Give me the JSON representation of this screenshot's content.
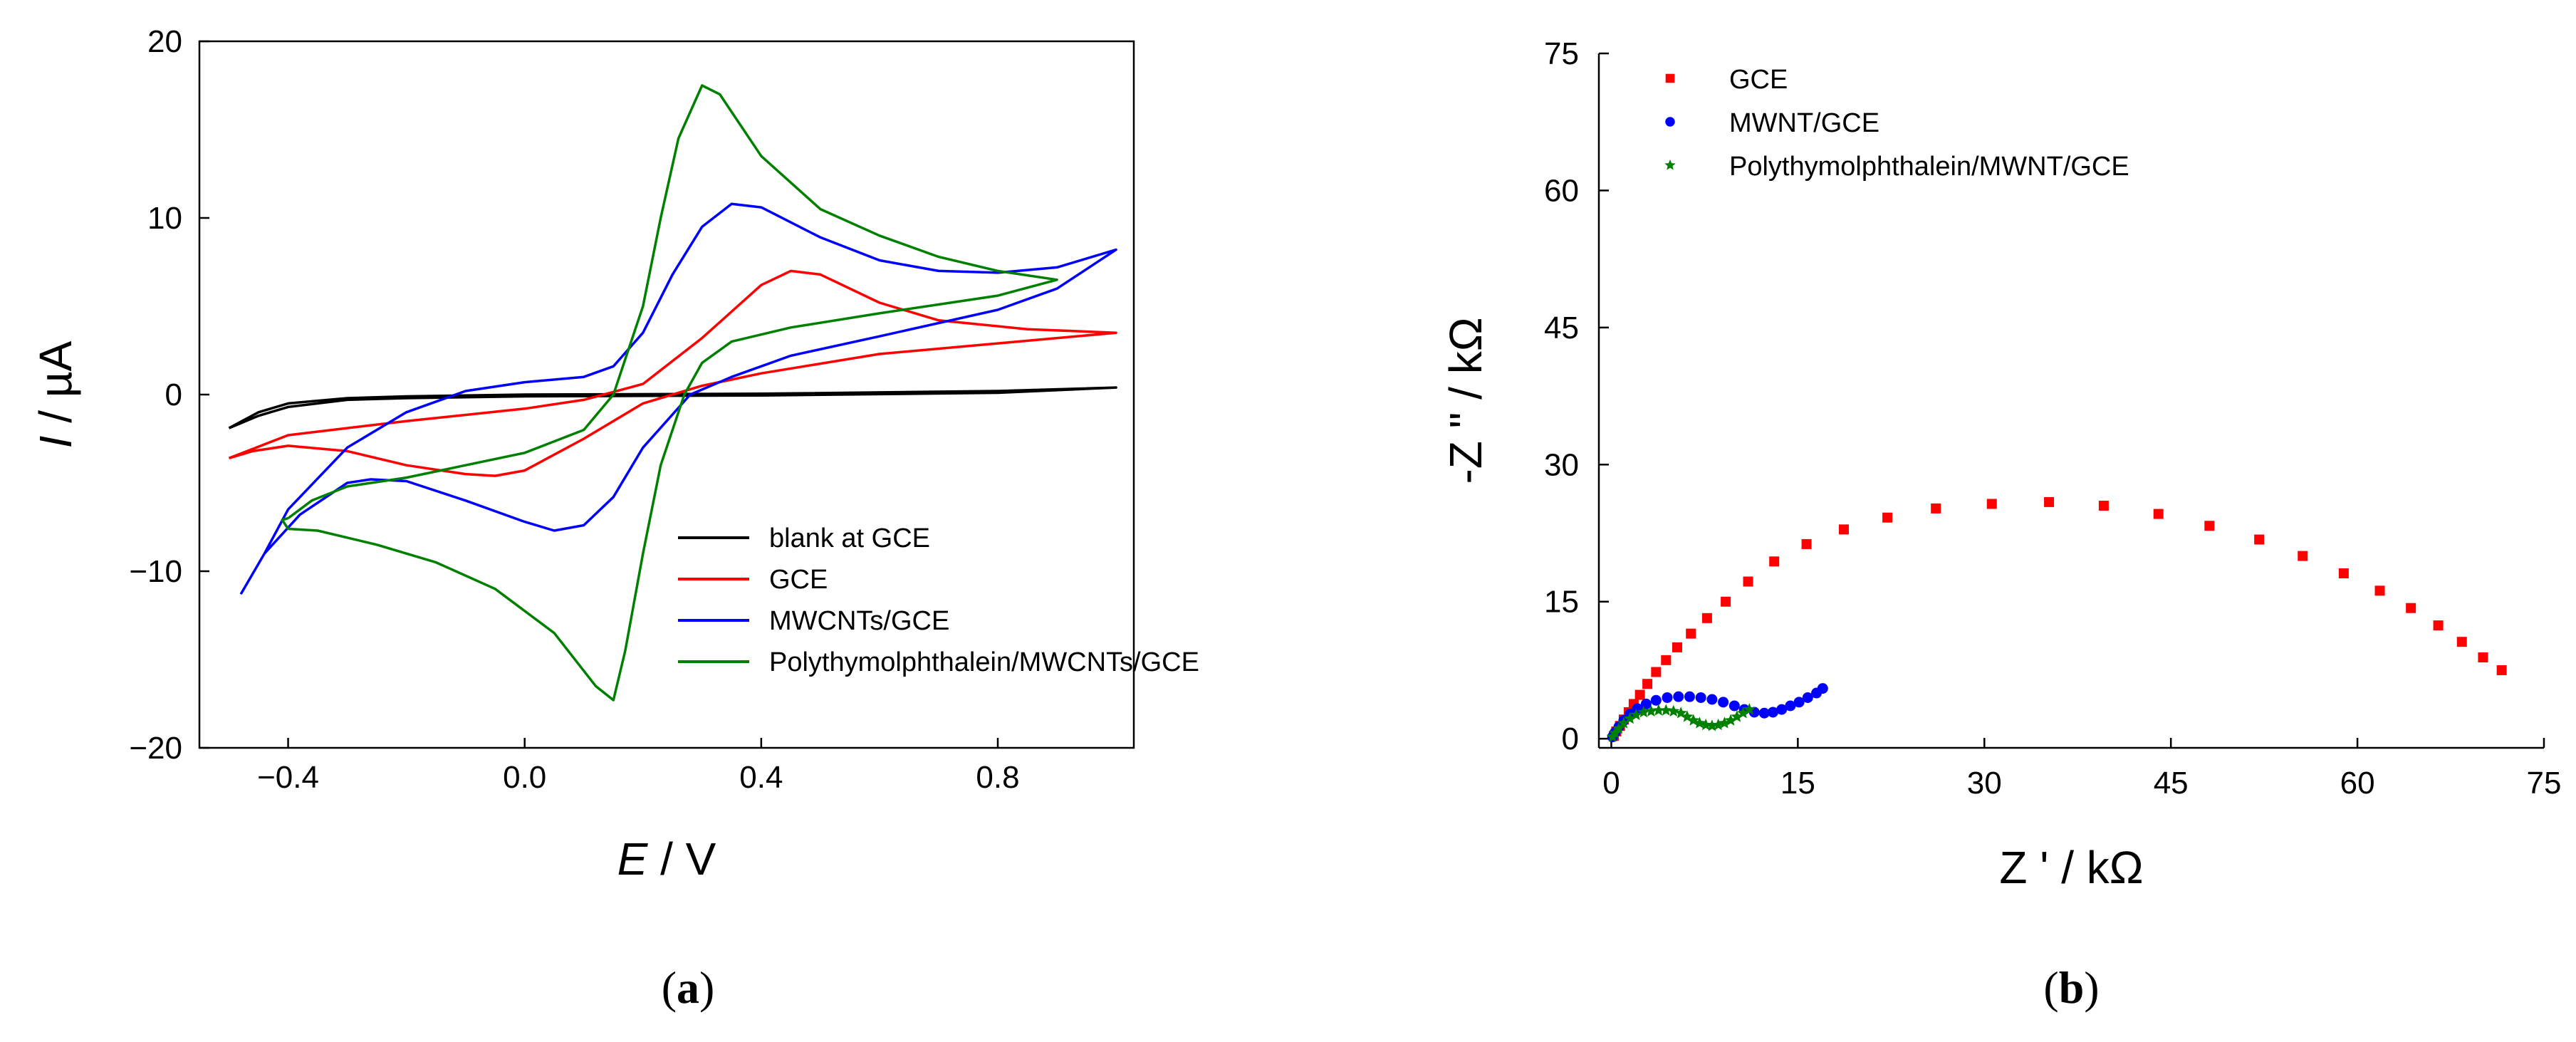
{
  "chart_data": [
    {
      "panel": "(a)",
      "caption_paren_open": "(",
      "caption_letter": "a",
      "caption_paren_close": ")",
      "type": "line",
      "xlabel_var": "E",
      "xlabel_unit": " / V",
      "ylabel_var": "I",
      "ylabel_unit": " / µA",
      "xlim": [
        -0.55,
        1.03
      ],
      "ylim": [
        -20,
        20
      ],
      "xticks": [
        -0.4,
        0.0,
        0.4,
        0.8
      ],
      "xtick_labels": [
        "−0.4",
        "0.0",
        "0.4",
        "0.8"
      ],
      "yticks": [
        -20,
        -10,
        0,
        10,
        20
      ],
      "ytick_labels": [
        "−20",
        "−10",
        "0",
        "10",
        "20"
      ],
      "legend_position": "bottom-right",
      "series": [
        {
          "name": "blank at GCE",
          "color": "#000000",
          "points": [
            [
              -0.5,
              -1.9
            ],
            [
              -0.45,
              -1.0
            ],
            [
              -0.4,
              -0.5
            ],
            [
              -0.3,
              -0.2
            ],
            [
              -0.2,
              -0.1
            ],
            [
              0.0,
              0.0
            ],
            [
              0.4,
              0.05
            ],
            [
              0.8,
              0.2
            ],
            [
              1.0,
              0.4
            ],
            [
              0.8,
              0.1
            ],
            [
              0.4,
              -0.05
            ],
            [
              0.0,
              -0.1
            ],
            [
              -0.2,
              -0.2
            ],
            [
              -0.3,
              -0.3
            ],
            [
              -0.4,
              -0.7
            ],
            [
              -0.45,
              -1.2
            ],
            [
              -0.5,
              -1.9
            ]
          ]
        },
        {
          "name": "GCE",
          "color": "#ff0000",
          "points": [
            [
              -0.5,
              -3.6
            ],
            [
              -0.4,
              -2.3
            ],
            [
              -0.2,
              -1.5
            ],
            [
              0.0,
              -0.8
            ],
            [
              0.1,
              -0.3
            ],
            [
              0.2,
              0.6
            ],
            [
              0.3,
              3.2
            ],
            [
              0.4,
              6.2
            ],
            [
              0.45,
              7.0
            ],
            [
              0.5,
              6.8
            ],
            [
              0.6,
              5.2
            ],
            [
              0.7,
              4.2
            ],
            [
              0.85,
              3.7
            ],
            [
              1.0,
              3.5
            ],
            [
              0.8,
              2.9
            ],
            [
              0.6,
              2.3
            ],
            [
              0.4,
              1.2
            ],
            [
              0.3,
              0.5
            ],
            [
              0.2,
              -0.5
            ],
            [
              0.1,
              -2.5
            ],
            [
              0.0,
              -4.3
            ],
            [
              -0.05,
              -4.6
            ],
            [
              -0.1,
              -4.5
            ],
            [
              -0.2,
              -4.0
            ],
            [
              -0.3,
              -3.2
            ],
            [
              -0.4,
              -2.9
            ],
            [
              -0.46,
              -3.2
            ],
            [
              -0.5,
              -3.6
            ]
          ]
        },
        {
          "name": "MWCNTs/GCE",
          "color": "#0000ff",
          "points": [
            [
              -0.48,
              -11.3
            ],
            [
              -0.44,
              -9.0
            ],
            [
              -0.4,
              -6.5
            ],
            [
              -0.3,
              -3.0
            ],
            [
              -0.2,
              -1.0
            ],
            [
              -0.1,
              0.2
            ],
            [
              0.0,
              0.7
            ],
            [
              0.1,
              1.0
            ],
            [
              0.15,
              1.6
            ],
            [
              0.2,
              3.5
            ],
            [
              0.25,
              6.8
            ],
            [
              0.3,
              9.5
            ],
            [
              0.35,
              10.8
            ],
            [
              0.4,
              10.6
            ],
            [
              0.5,
              8.9
            ],
            [
              0.6,
              7.6
            ],
            [
              0.7,
              7.0
            ],
            [
              0.8,
              6.9
            ],
            [
              0.9,
              7.2
            ],
            [
              1.0,
              8.2
            ],
            [
              0.9,
              6.0
            ],
            [
              0.8,
              4.8
            ],
            [
              0.6,
              3.3
            ],
            [
              0.45,
              2.2
            ],
            [
              0.35,
              1.0
            ],
            [
              0.28,
              0.0
            ],
            [
              0.2,
              -3.0
            ],
            [
              0.15,
              -5.8
            ],
            [
              0.1,
              -7.4
            ],
            [
              0.05,
              -7.7
            ],
            [
              0.0,
              -7.2
            ],
            [
              -0.1,
              -6.0
            ],
            [
              -0.2,
              -4.9
            ],
            [
              -0.26,
              -4.8
            ],
            [
              -0.3,
              -5.0
            ],
            [
              -0.38,
              -6.8
            ],
            [
              -0.44,
              -9.0
            ],
            [
              -0.48,
              -11.3
            ]
          ]
        },
        {
          "name": "Polythymolphthalein/MWCNTs/GCE",
          "color": "#008000",
          "points": [
            [
              -0.4,
              -7.0
            ],
            [
              -0.36,
              -6.0
            ],
            [
              -0.3,
              -5.2
            ],
            [
              -0.2,
              -4.7
            ],
            [
              -0.1,
              -4.0
            ],
            [
              0.0,
              -3.3
            ],
            [
              0.1,
              -2.0
            ],
            [
              0.15,
              0.0
            ],
            [
              0.2,
              5.0
            ],
            [
              0.23,
              10.0
            ],
            [
              0.26,
              14.5
            ],
            [
              0.3,
              17.5
            ],
            [
              0.33,
              17.0
            ],
            [
              0.4,
              13.5
            ],
            [
              0.5,
              10.5
            ],
            [
              0.6,
              9.0
            ],
            [
              0.7,
              7.8
            ],
            [
              0.8,
              7.0
            ],
            [
              0.9,
              6.5
            ],
            [
              0.8,
              5.6
            ],
            [
              0.6,
              4.6
            ],
            [
              0.45,
              3.8
            ],
            [
              0.35,
              3.0
            ],
            [
              0.3,
              1.8
            ],
            [
              0.27,
              0.0
            ],
            [
              0.23,
              -4.0
            ],
            [
              0.2,
              -9.0
            ],
            [
              0.17,
              -14.5
            ],
            [
              0.15,
              -17.3
            ],
            [
              0.12,
              -16.5
            ],
            [
              0.05,
              -13.5
            ],
            [
              -0.05,
              -11.0
            ],
            [
              -0.15,
              -9.5
            ],
            [
              -0.25,
              -8.5
            ],
            [
              -0.35,
              -7.7
            ],
            [
              -0.4,
              -7.6
            ],
            [
              -0.41,
              -7.1
            ],
            [
              -0.4,
              -7.0
            ]
          ]
        }
      ]
    },
    {
      "panel": "(b)",
      "caption_paren_open": "(",
      "caption_letter": "b",
      "caption_paren_close": ")",
      "type": "scatter",
      "xlabel_var": "Z '",
      "xlabel_unit": " / kΩ",
      "ylabel_var": "-Z \"",
      "ylabel_unit": " / kΩ",
      "xlim": [
        -1,
        75
      ],
      "ylim": [
        -1,
        75
      ],
      "xticks": [
        0,
        15,
        30,
        45,
        60,
        75
      ],
      "xtick_labels": [
        "0",
        "15",
        "30",
        "45",
        "60",
        "75"
      ],
      "yticks": [
        0,
        15,
        30,
        45,
        60,
        75
      ],
      "ytick_labels": [
        "0",
        "15",
        "30",
        "45",
        "60",
        "75"
      ],
      "legend_position": "top-left",
      "series": [
        {
          "name": "GCE",
          "color": "#ff0000",
          "marker": "square",
          "points": [
            [
              0.2,
              0.3
            ],
            [
              0.4,
              0.8
            ],
            [
              0.7,
              1.4
            ],
            [
              1.0,
              2.1
            ],
            [
              1.4,
              2.9
            ],
            [
              1.8,
              3.8
            ],
            [
              2.3,
              4.8
            ],
            [
              2.9,
              6.0
            ],
            [
              3.6,
              7.3
            ],
            [
              4.4,
              8.6
            ],
            [
              5.3,
              10.0
            ],
            [
              6.4,
              11.5
            ],
            [
              7.7,
              13.2
            ],
            [
              9.2,
              15.0
            ],
            [
              11.0,
              17.2
            ],
            [
              13.1,
              19.4
            ],
            [
              15.7,
              21.3
            ],
            [
              18.7,
              22.9
            ],
            [
              22.2,
              24.2
            ],
            [
              26.1,
              25.2
            ],
            [
              30.6,
              25.7
            ],
            [
              35.2,
              25.9
            ],
            [
              39.6,
              25.5
            ],
            [
              44.0,
              24.6
            ],
            [
              48.1,
              23.3
            ],
            [
              52.1,
              21.8
            ],
            [
              55.6,
              20.0
            ],
            [
              58.9,
              18.1
            ],
            [
              61.8,
              16.2
            ],
            [
              64.3,
              14.3
            ],
            [
              66.5,
              12.4
            ],
            [
              68.4,
              10.6
            ],
            [
              70.1,
              8.9
            ],
            [
              71.6,
              7.5
            ]
          ]
        },
        {
          "name": "MWNT/GCE",
          "color": "#0000ff",
          "marker": "circle",
          "points": [
            [
              0.1,
              0.2
            ],
            [
              0.3,
              0.7
            ],
            [
              0.6,
              1.3
            ],
            [
              1.0,
              2.0
            ],
            [
              1.5,
              2.7
            ],
            [
              2.1,
              3.3
            ],
            [
              2.8,
              3.8
            ],
            [
              3.6,
              4.2
            ],
            [
              4.5,
              4.5
            ],
            [
              5.4,
              4.6
            ],
            [
              6.3,
              4.6
            ],
            [
              7.2,
              4.5
            ],
            [
              8.1,
              4.3
            ],
            [
              9.0,
              4.0
            ],
            [
              9.9,
              3.6
            ],
            [
              10.7,
              3.2
            ],
            [
              11.5,
              2.9
            ],
            [
              12.3,
              2.8
            ],
            [
              13.0,
              2.9
            ],
            [
              13.7,
              3.2
            ],
            [
              14.4,
              3.6
            ],
            [
              15.1,
              4.0
            ],
            [
              15.8,
              4.5
            ],
            [
              16.5,
              5.0
            ],
            [
              17.0,
              5.5
            ]
          ]
        },
        {
          "name": "Polythymolphthalein/MWNT/GCE",
          "color": "#008000",
          "marker": "star",
          "points": [
            [
              0.1,
              0.2
            ],
            [
              0.3,
              0.6
            ],
            [
              0.6,
              1.1
            ],
            [
              1.0,
              1.7
            ],
            [
              1.5,
              2.2
            ],
            [
              2.0,
              2.6
            ],
            [
              2.6,
              2.9
            ],
            [
              3.2,
              3.0
            ],
            [
              3.8,
              3.1
            ],
            [
              4.4,
              3.1
            ],
            [
              5.0,
              3.0
            ],
            [
              5.6,
              2.8
            ],
            [
              6.1,
              2.4
            ],
            [
              6.6,
              2.0
            ],
            [
              7.1,
              1.7
            ],
            [
              7.6,
              1.5
            ],
            [
              8.1,
              1.4
            ],
            [
              8.6,
              1.5
            ],
            [
              9.1,
              1.7
            ],
            [
              9.6,
              2.0
            ],
            [
              10.1,
              2.4
            ],
            [
              10.6,
              2.8
            ],
            [
              11.1,
              3.2
            ]
          ]
        }
      ]
    }
  ]
}
